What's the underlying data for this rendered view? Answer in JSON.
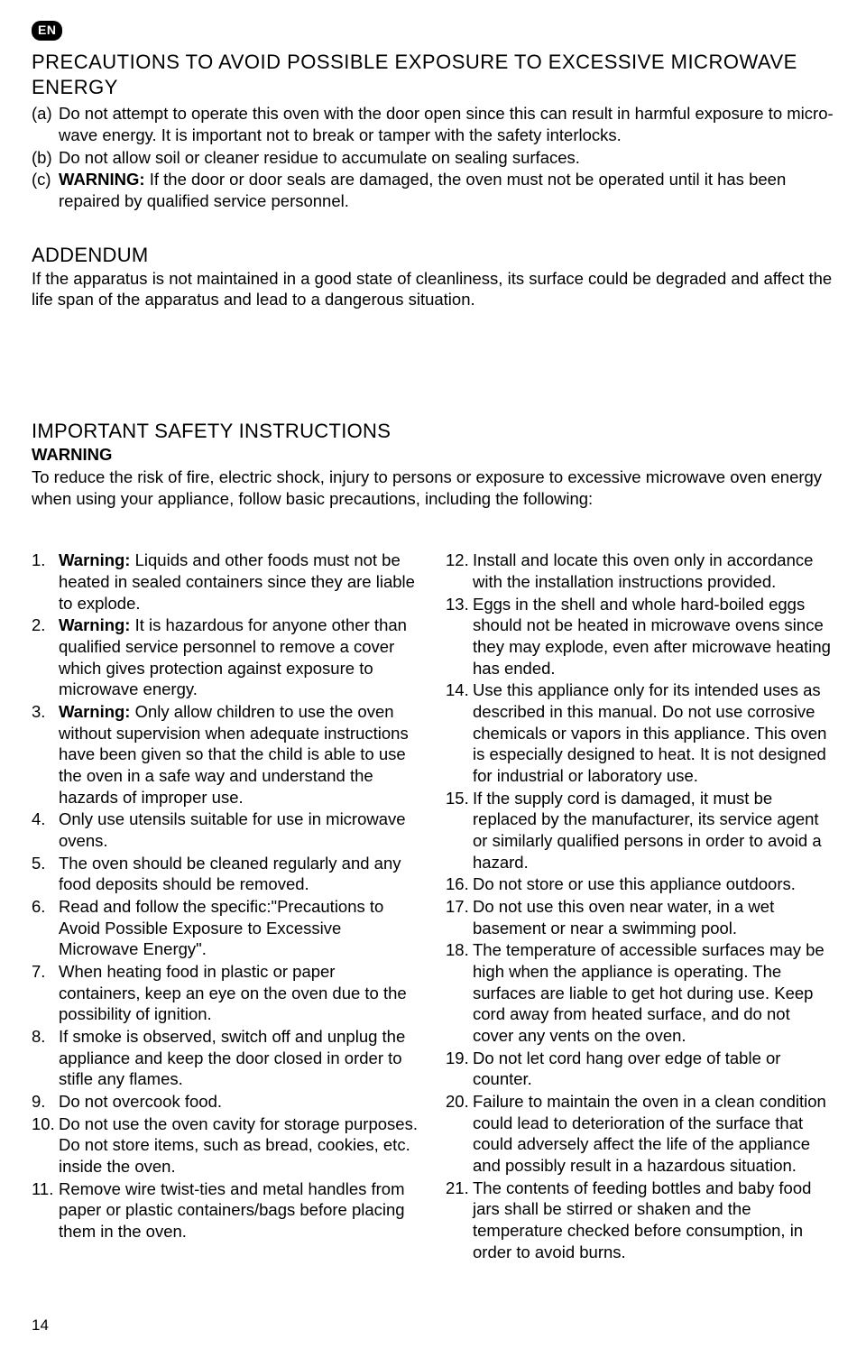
{
  "lang_badge": "EN",
  "precautions": {
    "heading": "PRECAUTIONS TO AVOID POSSIBLE EXPOSURE TO EXCESSIVE MICROWAVE ENERGY",
    "items": [
      {
        "marker": "(a)",
        "text": "Do not attempt to operate this oven with the door open since this can result in harmful exposure to micro-wave energy. It is important not to break or tamper with the safety interlocks."
      },
      {
        "marker": "(b)",
        "text": "Do not allow soil or cleaner residue to accumulate on sealing surfaces."
      },
      {
        "marker": "(c)",
        "bold_prefix": "WARNING:",
        "text": " If the door or door seals are damaged, the oven must not be operated until it has been repaired by qualified service personnel."
      }
    ]
  },
  "addendum": {
    "heading": "ADDENDUM",
    "text": "If the apparatus is not maintained in a good state of cleanliness, its surface could be degraded and affect the life span of the apparatus and lead to a dangerous situation."
  },
  "safety": {
    "heading": "IMPORTANT SAFETY INSTRUCTIONS",
    "subheading": "WARNING",
    "intro": "To reduce the risk of fire, electric shock, injury to persons or exposure to excessive microwave oven energy when using your appliance, follow basic precautions, including the following:",
    "left": [
      {
        "marker": "1.",
        "bold_prefix": "Warning:",
        "text": " Liquids and other foods must not be heated in sealed containers since they are liable to explode."
      },
      {
        "marker": "2.",
        "bold_prefix": "Warning:",
        "text": " It is hazardous for anyone other than qualified service personnel to remove a cover which gives protection against exposure to microwave energy."
      },
      {
        "marker": "3.",
        "bold_prefix": "Warning:",
        "text": " Only allow children to use the oven without supervision when adequate instructions have been given so that the child is able to use the oven in a safe way and understand the hazards of improper use."
      },
      {
        "marker": "4.",
        "text": "Only use utensils suitable for use in microwave ovens."
      },
      {
        "marker": "5.",
        "text": "The oven should be cleaned regularly and any food deposits should be removed."
      },
      {
        "marker": "6.",
        "text": "Read and follow the specific:\"Precautions to Avoid Possible Exposure to Excessive Microwave Energy\"."
      },
      {
        "marker": "7.",
        "text": "When heating food in plastic or paper containers, keep an eye on the oven due to the possibility of ignition."
      },
      {
        "marker": "8.",
        "text": "If smoke is observed, switch off and unplug the appliance and keep the door closed in order to stifle any flames."
      },
      {
        "marker": "9.",
        "text": "Do not overcook food."
      },
      {
        "marker": "10.",
        "text": "Do not use the oven cavity for storage purposes. Do not store items, such as bread, cookies, etc. inside the oven."
      },
      {
        "marker": "11.",
        "text": "Remove wire twist-ties and metal handles from paper or plastic containers/bags before placing them in the oven."
      }
    ],
    "right": [
      {
        "marker": "12.",
        "text": "Install and locate this oven only in accordance with the installation instructions provided."
      },
      {
        "marker": "13.",
        "text": "Eggs in the shell and whole hard-boiled eggs should not be heated in microwave ovens since they may explode, even after microwave heating has ended."
      },
      {
        "marker": "14.",
        "text": "Use this appliance only for its intended uses as described in this manual. Do not use corrosive chemicals or vapors in this appliance. This oven is especially designed to heat. It is not designed for industrial or laboratory use."
      },
      {
        "marker": "15.",
        "text": "If the supply cord is damaged, it must be replaced by the manufacturer, its service agent or similarly qualified persons in order to avoid a hazard."
      },
      {
        "marker": "16.",
        "text": "Do not store or use this appliance outdoors."
      },
      {
        "marker": "17.",
        "text": "Do not use this oven near water, in a wet basement or near a swimming pool."
      },
      {
        "marker": "18.",
        "text": "The temperature of accessible surfaces may be high when the appliance is operating. The surfaces are liable to get hot during use. Keep cord away from heated surface, and do not cover any vents on the oven."
      },
      {
        "marker": "19.",
        "text": "Do not let cord hang over edge of table or counter."
      },
      {
        "marker": "20.",
        "text": "Failure to maintain the oven in a clean condition could lead to deterioration of the surface that could adversely affect the life of the appliance and possibly result in a hazardous situation."
      },
      {
        "marker": "21.",
        "text": "The contents of feeding bottles and baby food jars shall be stirred or shaken and the temperature checked before consumption, in order to avoid burns."
      }
    ]
  },
  "page_number": "14"
}
